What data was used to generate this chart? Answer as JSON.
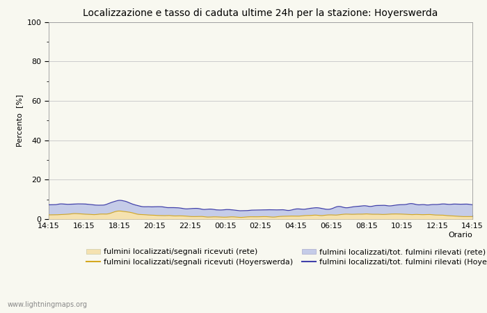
{
  "title": "Localizzazione e tasso di caduta ultime 24h per la stazione: Hoyerswerda",
  "xlabel": "Orario",
  "ylabel": "Percento  [%]",
  "ylim": [
    0,
    100
  ],
  "yticks_major": [
    0,
    20,
    40,
    60,
    80,
    100
  ],
  "yticks_minor": [
    10,
    30,
    50,
    70,
    90
  ],
  "time_labels": [
    "14:15",
    "16:15",
    "18:15",
    "20:15",
    "22:15",
    "00:15",
    "02:15",
    "04:15",
    "06:15",
    "08:15",
    "10:15",
    "12:15",
    "14:15"
  ],
  "fill_rete_color": "#f5e2b0",
  "fill_hoy_color": "#c5cce8",
  "line_rete_color": "#d4a820",
  "line_hoy_color": "#4040aa",
  "background_color": "#f8f8f0",
  "plot_bg_color": "#f8f8f0",
  "grid_color": "#cccccc",
  "legend_labels": [
    "fulmini localizzati/segnali ricevuti (rete)",
    "fulmini localizzati/segnali ricevuti (Hoyerswerda)",
    "fulmini localizzati/tot. fulmini rilevati (rete)",
    "fulmini localizzati/tot. fulmini rilevati (Hoyerswerda)"
  ],
  "watermark": "www.lightningmaps.org",
  "n_points": 289,
  "title_fontsize": 10,
  "axis_fontsize": 8,
  "legend_fontsize": 8,
  "tick_fontsize": 8
}
